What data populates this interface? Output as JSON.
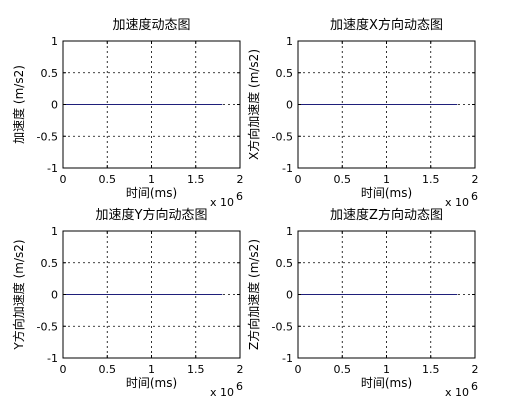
{
  "chart_data": [
    {
      "type": "line",
      "title": "加速度动态图",
      "xlabel": "时间(ms)",
      "ylabel": "加速度 (m/s2)",
      "xlim": [
        0,
        2000000
      ],
      "ylim": [
        -1,
        1
      ],
      "x_ticks": [
        "0",
        "0.5",
        "1",
        "1.5",
        "2"
      ],
      "y_ticks": [
        "1",
        "0.5",
        "0",
        "-0.5",
        "-1"
      ],
      "x_exponent_label": "x 10",
      "x_exponent_power": "6",
      "grid": true,
      "series": [
        {
          "x": [
            0,
            1800000
          ],
          "y": [
            0,
            0
          ],
          "color": "#1f1f7a"
        }
      ]
    },
    {
      "type": "line",
      "title": "加速度X方向动态图",
      "xlabel": "时间(ms)",
      "ylabel": "X方向加速度 (m/s2)",
      "xlim": [
        0,
        2000000
      ],
      "ylim": [
        -1,
        1
      ],
      "x_ticks": [
        "0",
        "0.5",
        "1",
        "1.5",
        "2"
      ],
      "y_ticks": [
        "1",
        "0.5",
        "0",
        "-0.5",
        "-1"
      ],
      "x_exponent_label": "x 10",
      "x_exponent_power": "6",
      "grid": true,
      "series": [
        {
          "x": [
            0,
            1800000
          ],
          "y": [
            0,
            0
          ],
          "color": "#1f1f7a"
        }
      ]
    },
    {
      "type": "line",
      "title": "加速度Y方向动态图",
      "xlabel": "时间(ms)",
      "ylabel": "Y方向加速度 (m/s2)",
      "xlim": [
        0,
        2000000
      ],
      "ylim": [
        -1,
        1
      ],
      "x_ticks": [
        "0",
        "0.5",
        "1",
        "1.5",
        "2"
      ],
      "y_ticks": [
        "1",
        "0.5",
        "0",
        "-0.5",
        "-1"
      ],
      "x_exponent_label": "x 10",
      "x_exponent_power": "6",
      "grid": true,
      "series": [
        {
          "x": [
            0,
            1800000
          ],
          "y": [
            0,
            0
          ],
          "color": "#1f1f7a"
        }
      ]
    },
    {
      "type": "line",
      "title": "加速度Z方向动态图",
      "xlabel": "时间(ms)",
      "ylabel": "Z方向加速度 (m/s2)",
      "xlim": [
        0,
        2000000
      ],
      "ylim": [
        -1,
        1
      ],
      "x_ticks": [
        "0",
        "0.5",
        "1",
        "1.5",
        "2"
      ],
      "y_ticks": [
        "1",
        "0.5",
        "0",
        "-0.5",
        "-1"
      ],
      "x_exponent_label": "x 10",
      "x_exponent_power": "6",
      "grid": true,
      "series": [
        {
          "x": [
            0,
            1800000
          ],
          "y": [
            0,
            0
          ],
          "color": "#1f1f7a"
        }
      ]
    }
  ]
}
